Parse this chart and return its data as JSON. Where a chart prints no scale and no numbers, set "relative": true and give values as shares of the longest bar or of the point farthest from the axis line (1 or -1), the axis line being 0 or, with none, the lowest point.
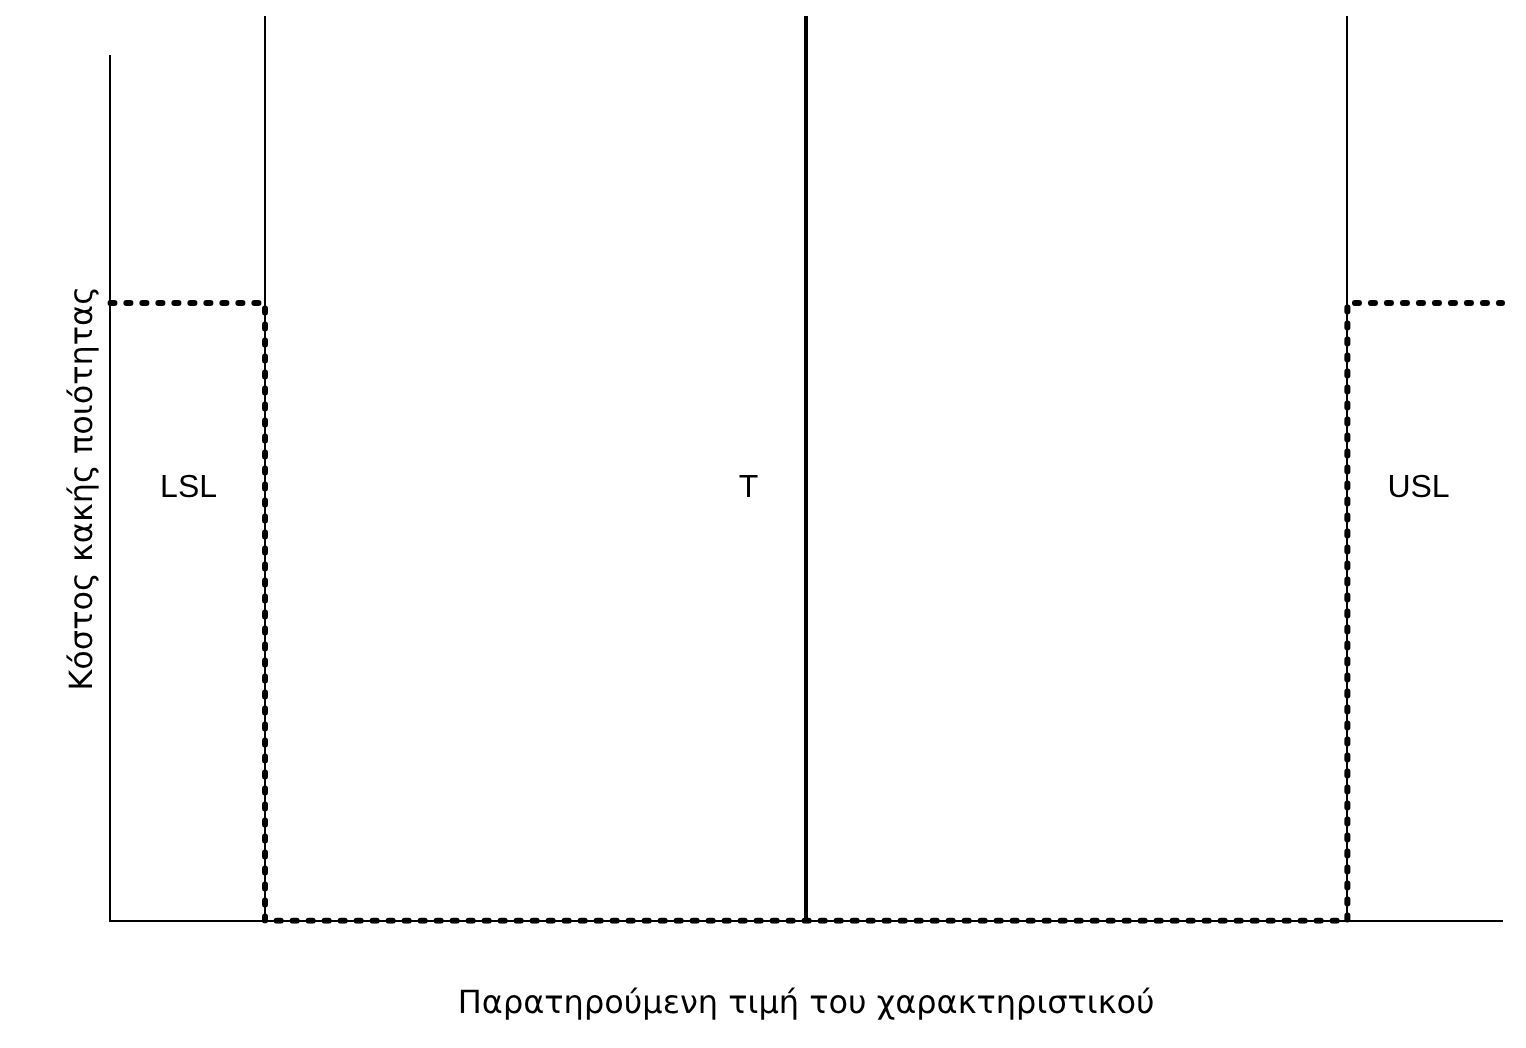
{
  "chart_data": {
    "type": "step",
    "relative": true,
    "xlabel": "Παρατηρούμενη τιμή του χαρακτηριστικού",
    "ylabel": "Κόστος κακής ποιότητας",
    "categories": [
      null,
      null,
      null,
      null,
      null,
      null,
      null,
      null,
      null,
      null,
      null,
      null,
      null,
      null,
      null,
      null,
      null,
      null,
      null
    ],
    "series": [
      {
        "color": "#000000",
        "values": [
          1,
          1,
          0,
          0,
          0,
          0,
          0,
          0,
          0,
          0,
          0,
          0,
          0,
          0,
          0,
          0,
          1,
          1,
          1
        ]
      }
    ],
    "annotations": [
      "LSL",
      "T",
      "USL"
    ],
    "grid": false,
    "legend": false,
    "marker": "none",
    "line_style": "dotted"
  }
}
